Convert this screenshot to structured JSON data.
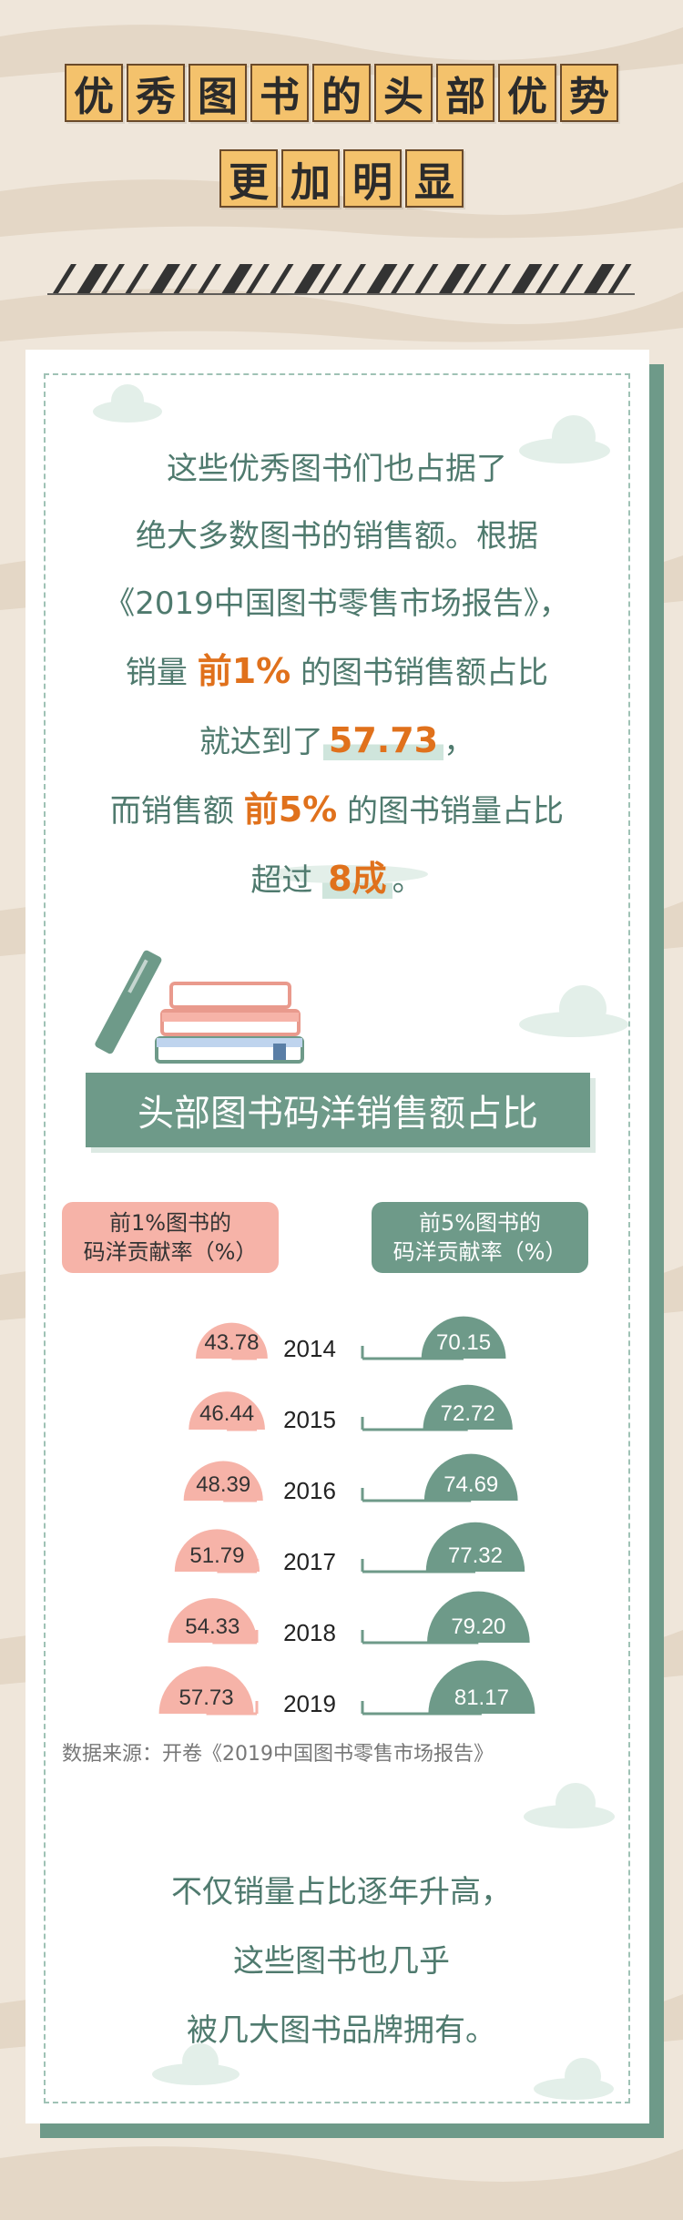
{
  "title": {
    "line1_chars": [
      "优",
      "秀",
      "图",
      "书",
      "的",
      "头",
      "部",
      "优",
      "势"
    ],
    "line2_chars": [
      "更",
      "加",
      "明",
      "显"
    ]
  },
  "intro": {
    "line1": "这些优秀图书们也占据了",
    "line2": "绝大多数图书的销售额。根据",
    "line3": "《2019中国图书零售市场报告》，",
    "line4_pre": "销量 ",
    "line4_hl": "前1%",
    "line4_post": " 的图书销售额占比",
    "line5_pre": "就达到了",
    "line5_hl": "57.73",
    "line5_post": "，",
    "line6_pre": "而销售额 ",
    "line6_hl": "前5%",
    "line6_post": " 的图书销量占比",
    "line7_pre": "超过 ",
    "line7_hl": "8成",
    "line7_post": "。"
  },
  "banner": "头部图书码洋销售额占比",
  "legend": {
    "left_line1": "前1%图书的",
    "left_line2": "码洋贡献率（%）",
    "right_line1": "前5%图书的",
    "right_line2": "码洋贡献率（%）"
  },
  "source": "数据来源：开卷《2019中国图书零售市场报告》",
  "outro": {
    "line1": "不仅销量占比逐年升高，",
    "line2": "这些图书也几乎",
    "line3": "被几大图书品牌拥有。"
  },
  "colors": {
    "pink": "#f6b3a8",
    "green": "#6e9a89",
    "orange": "#e0711c",
    "cream": "#efe6da",
    "tile": "#f4c26c"
  },
  "chart_data": {
    "type": "bar",
    "categories": [
      "2014",
      "2015",
      "2016",
      "2017",
      "2018",
      "2019"
    ],
    "series": [
      {
        "name": "前1%图书的码洋贡献率（%）",
        "values": [
          43.78,
          46.44,
          48.39,
          51.79,
          54.33,
          57.73
        ],
        "color": "#f6b3a8"
      },
      {
        "name": "前5%图书的码洋贡献率（%）",
        "values": [
          70.15,
          72.72,
          74.69,
          77.32,
          79.2,
          81.17
        ],
        "color": "#6e9a89"
      }
    ],
    "value_labels": {
      "left": [
        "43.78",
        "46.44",
        "48.39",
        "51.79",
        "54.33",
        "57.73"
      ],
      "right": [
        "70.15",
        "72.72",
        "74.69",
        "77.32",
        "79.20",
        "81.17"
      ]
    },
    "xlabel": "",
    "ylabel": ""
  }
}
